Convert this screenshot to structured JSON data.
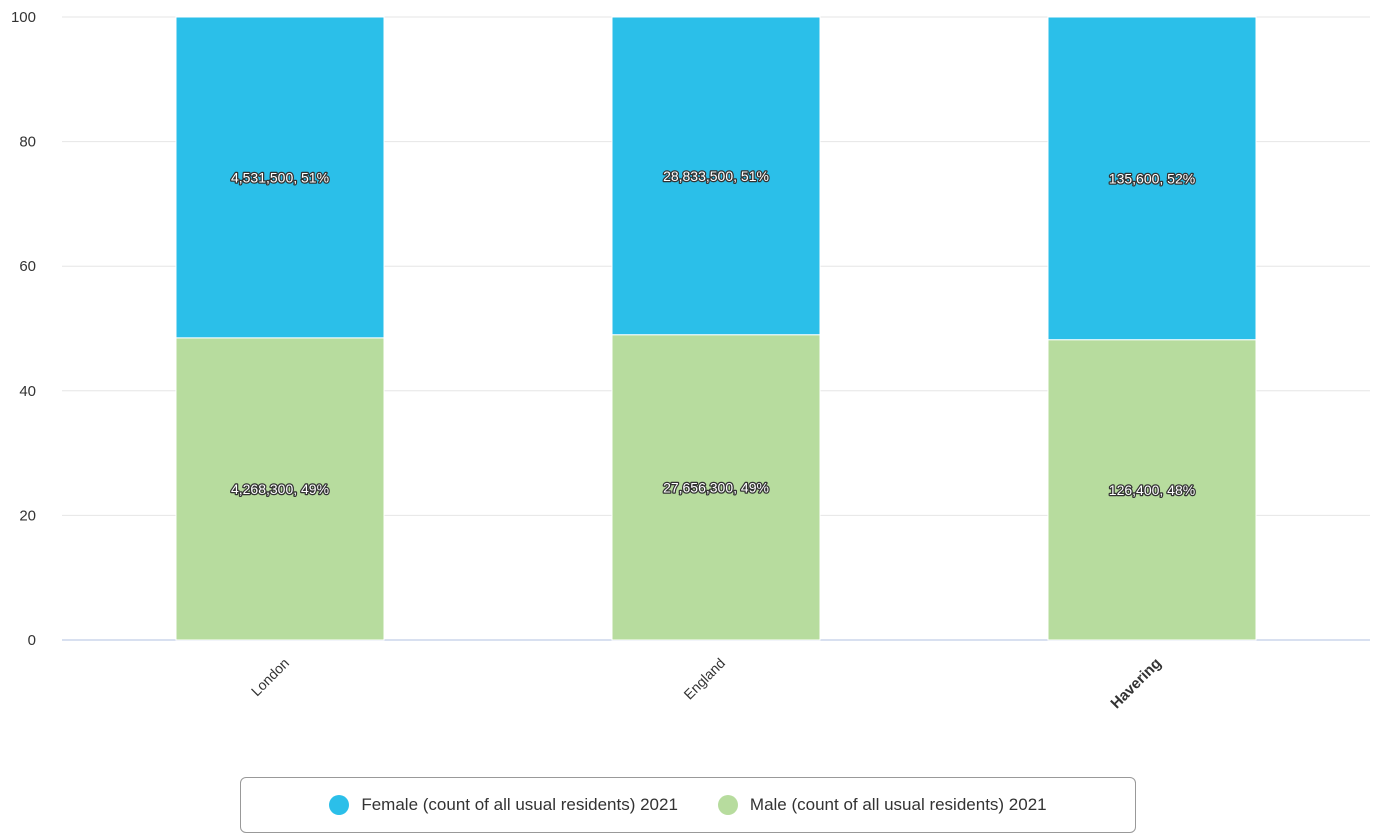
{
  "chart_data": {
    "type": "bar",
    "stacked": true,
    "categories": [
      "London",
      "England",
      "Havering"
    ],
    "highlight_category": "Havering",
    "ylim": [
      0,
      100
    ],
    "yticks": [
      0,
      20,
      40,
      60,
      80,
      100
    ],
    "grid": true,
    "legend_position": "bottom-center",
    "series": [
      {
        "name": "Female (count of all usual residents) 2021",
        "color": "#2bbfe9",
        "values": [
          51.5,
          51.0,
          51.8
        ],
        "labels": [
          "4,531,500, 51%",
          "28,833,500, 51%",
          "135,600, 52%"
        ]
      },
      {
        "name": "Male (count of all usual residents) 2021",
        "color": "#b7dc9e",
        "values": [
          48.5,
          49.0,
          48.2
        ],
        "labels": [
          "4,268,300, 49%",
          "27,656,300, 49%",
          "126,400, 48%"
        ]
      }
    ]
  }
}
